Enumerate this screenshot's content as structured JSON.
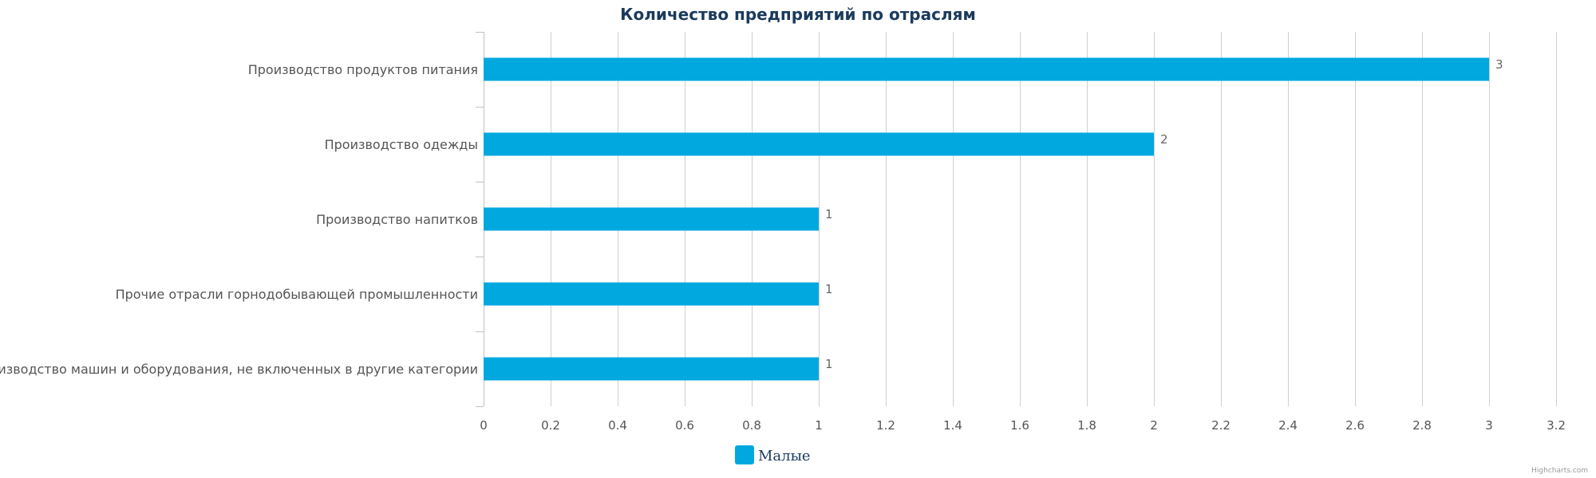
{
  "chart_data": {
    "type": "bar",
    "orientation": "horizontal",
    "title": "Количество предприятий по отраслям",
    "categories": [
      "Производство продуктов питания",
      "Производство одежды",
      "Производство напитков",
      "Прочие отрасли горнодобывающей промышленности",
      "Производство машин и оборудования, не включенных в другие категории"
    ],
    "series": [
      {
        "name": "Малые",
        "values": [
          3,
          2,
          1,
          1,
          1
        ],
        "color": "#00a8e0"
      }
    ],
    "xlim": [
      0,
      3.2
    ],
    "xticks": [
      "0",
      "0.2",
      "0.4",
      "0.6",
      "0.8",
      "1",
      "1.2",
      "1.4",
      "1.6",
      "1.8",
      "2",
      "2.2",
      "2.4",
      "2.6",
      "2.8",
      "3",
      "3.2"
    ],
    "grid": true,
    "legend_position": "bottom-center",
    "credit": "Highcharts.com"
  }
}
